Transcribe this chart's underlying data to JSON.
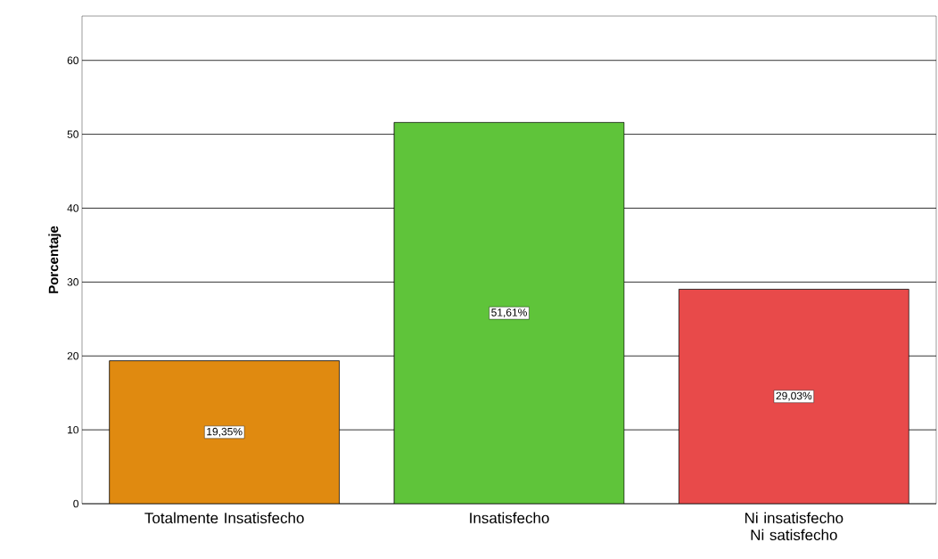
{
  "chart_data": {
    "type": "bar",
    "ylabel": "Porcentaje",
    "categories": [
      "Totalmente Insatisfecho",
      "Insatisfecho",
      "Ni insatisfecho Ni satisfecho"
    ],
    "values": [
      19.35,
      51.61,
      29.03
    ],
    "colors": [
      "#e08a10",
      "#5fc43a",
      "#e84a4a"
    ],
    "value_labels": [
      "19,35%",
      "51,61%",
      "29,03%"
    ],
    "ylim": [
      0,
      66
    ],
    "yticks": [
      0,
      10,
      20,
      30,
      40,
      50,
      60
    ],
    "grid": "y"
  }
}
